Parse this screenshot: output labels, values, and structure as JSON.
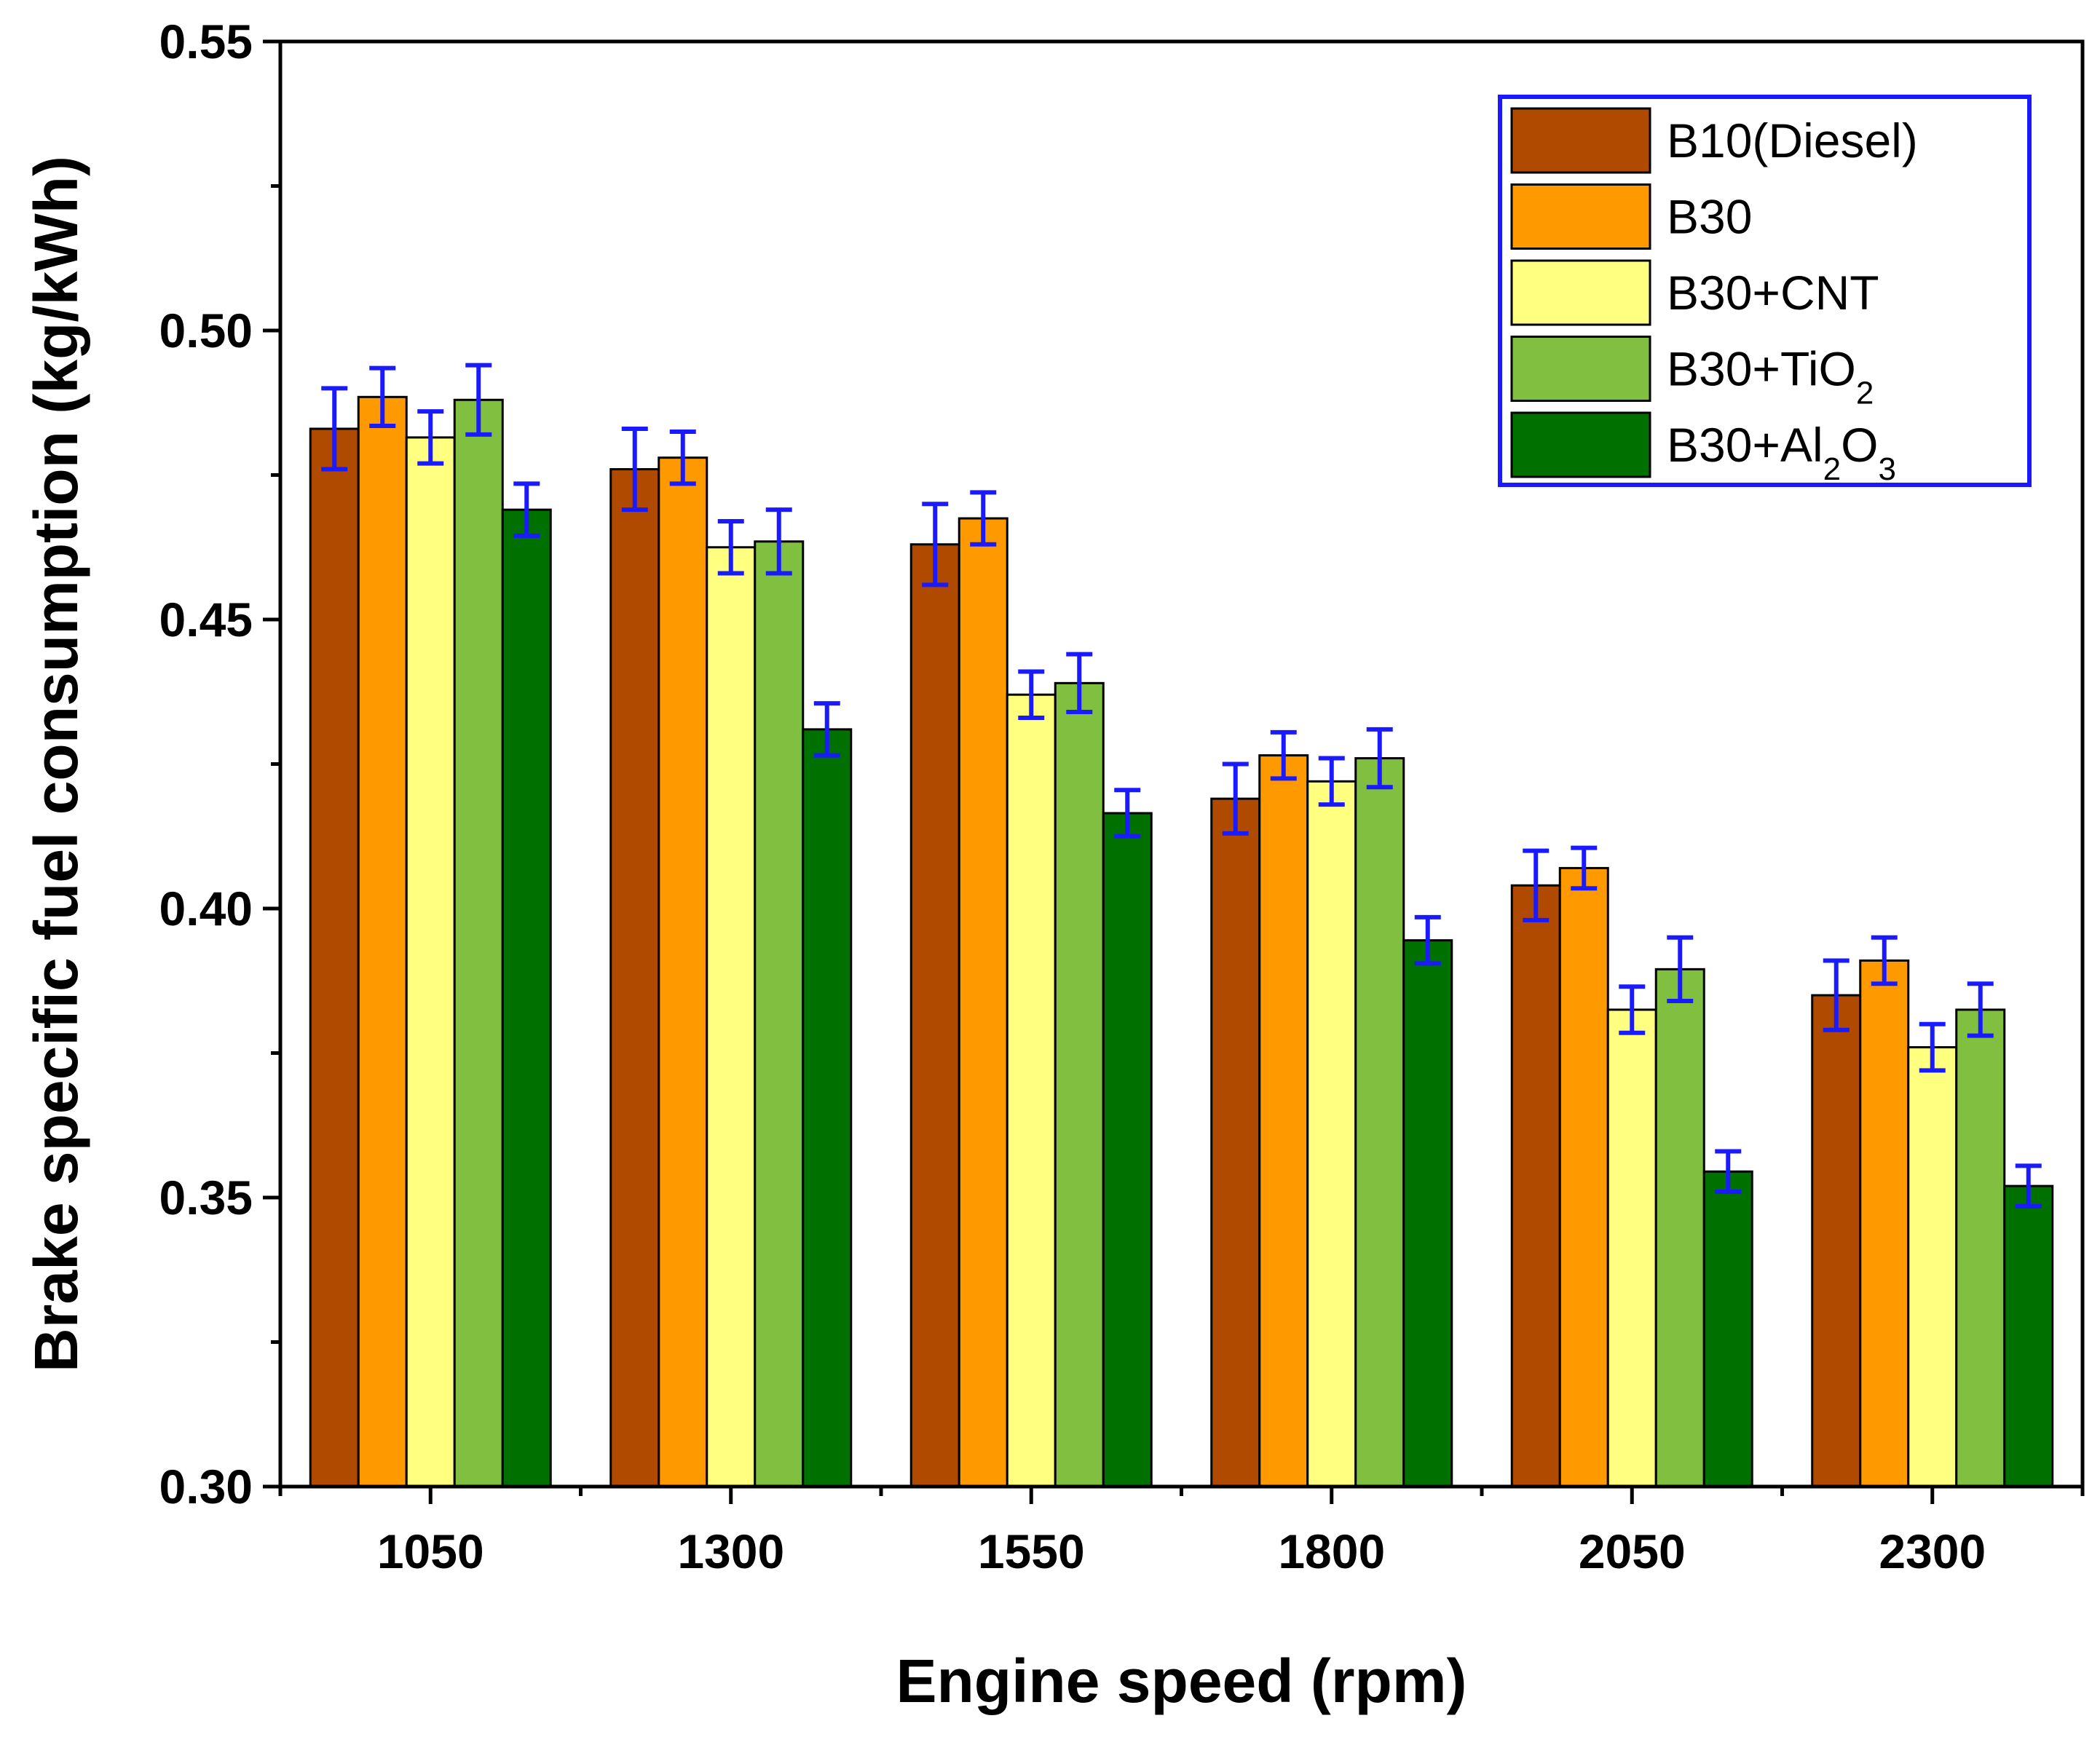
{
  "chart_data": {
    "type": "bar",
    "title": "",
    "xlabel": "Engine speed (rpm)",
    "ylabel": "Brake specific fuel consumption (kg/kWh)",
    "categories": [
      "1050",
      "1300",
      "1550",
      "1800",
      "2050",
      "2300"
    ],
    "ylim": [
      0.3,
      0.55
    ],
    "yticks": [
      "0.30",
      "0.35",
      "0.40",
      "0.45",
      "0.50",
      "0.55"
    ],
    "grid": false,
    "legend_position": "top-right",
    "legend_border_color": "#1a1aff",
    "error_bar_color": "#1a1aff",
    "series": [
      {
        "name": "B10(Diesel)",
        "name_parts": [
          {
            "t": "B10(Diesel)"
          }
        ],
        "color": "#b04a00",
        "values": [
          0.483,
          0.476,
          0.463,
          0.419,
          0.404,
          0.385
        ],
        "errors": [
          0.007,
          0.007,
          0.007,
          0.006,
          0.006,
          0.006
        ]
      },
      {
        "name": "B30",
        "name_parts": [
          {
            "t": "B30"
          }
        ],
        "color": "#ff9900",
        "values": [
          0.4885,
          0.478,
          0.4675,
          0.4265,
          0.407,
          0.391
        ],
        "errors": [
          0.005,
          0.0045,
          0.0045,
          0.004,
          0.0035,
          0.004
        ]
      },
      {
        "name": "B30+CNT",
        "name_parts": [
          {
            "t": "B30+CNT"
          }
        ],
        "color": "#ffff80",
        "values": [
          0.4815,
          0.4625,
          0.437,
          0.422,
          0.3825,
          0.376
        ],
        "errors": [
          0.0045,
          0.0045,
          0.004,
          0.004,
          0.004,
          0.004
        ]
      },
      {
        "name": "B30+TiO2",
        "name_parts": [
          {
            "t": "B30+TiO"
          },
          {
            "t": "2",
            "sub": true
          }
        ],
        "color": "#80bf40",
        "values": [
          0.488,
          0.4635,
          0.439,
          0.426,
          0.3895,
          0.3825
        ],
        "errors": [
          0.006,
          0.0055,
          0.005,
          0.005,
          0.0055,
          0.0045
        ]
      },
      {
        "name": "B30+Al2O3",
        "name_parts": [
          {
            "t": "B30+Al"
          },
          {
            "t": "2",
            "sub": true
          },
          {
            "t": "O"
          },
          {
            "t": "3",
            "sub": true
          }
        ],
        "color": "#007000",
        "values": [
          0.469,
          0.431,
          0.4165,
          0.3945,
          0.3545,
          0.352
        ],
        "errors": [
          0.0045,
          0.0045,
          0.004,
          0.004,
          0.0035,
          0.0035
        ]
      }
    ]
  }
}
